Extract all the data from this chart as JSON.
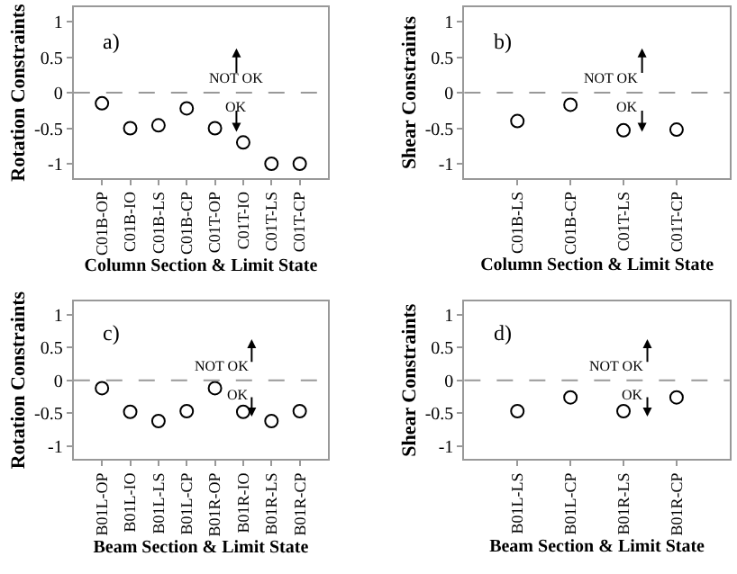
{
  "chart_data": [
    {
      "type": "scatter",
      "xlabel": "Column Section & Limit State",
      "ylabel": "Rotation Constraints",
      "categories": [
        "C01B-OP",
        "C01B-IO",
        "C01B-LS",
        "C01B-CP",
        "C01T-OP",
        "C01T-IO",
        "C01T-LS",
        "C01T-CP"
      ],
      "series": [
        {
          "color": "#000000",
          "values": [
            -0.15,
            -0.5,
            -0.46,
            -0.22,
            -0.5,
            -0.7,
            -1,
            -1
          ]
        }
      ],
      "ylim": [
        -1.2,
        1.2
      ],
      "yticks": [
        -1,
        -0.5,
        0,
        0.5,
        1
      ],
      "marker": "circle",
      "ref_lines": [
        {
          "axis": "y",
          "value": 0,
          "color": "#999999",
          "line_style": "dashed"
        }
      ],
      "annotations": [
        "a)",
        "NOT OK",
        "OK"
      ]
    },
    {
      "type": "scatter",
      "xlabel": "Column Section & Limit State",
      "ylabel": "Shear Constraints",
      "categories": [
        "C01B-LS",
        "C01B-CP",
        "C01T-LS",
        "C01T-CP"
      ],
      "series": [
        {
          "color": "#000000",
          "values": [
            -0.4,
            -0.17,
            -0.53,
            -0.52
          ]
        }
      ],
      "ylim": [
        -1.2,
        1.2
      ],
      "yticks": [
        -1,
        -0.5,
        0,
        0.5,
        1
      ],
      "marker": "circle",
      "ref_lines": [
        {
          "axis": "y",
          "value": 0,
          "color": "#999999",
          "line_style": "dashed"
        }
      ],
      "annotations": [
        "b)",
        "NOT OK",
        "OK"
      ]
    },
    {
      "type": "scatter",
      "xlabel": "Beam Section & Limit State",
      "ylabel": "Rotation Constraints",
      "categories": [
        "B01L-OP",
        "B01L-IO",
        "B01L-LS",
        "B01L-CP",
        "B01R-OP",
        "B01R-IO",
        "B01R-LS",
        "B01R-CP"
      ],
      "series": [
        {
          "color": "#000000",
          "values": [
            -0.12,
            -0.48,
            -0.62,
            -0.47,
            -0.12,
            -0.48,
            -0.62,
            -0.47
          ]
        }
      ],
      "ylim": [
        -1.2,
        1.2
      ],
      "yticks": [
        -1,
        -0.5,
        0,
        0.5,
        1
      ],
      "marker": "circle",
      "ref_lines": [
        {
          "axis": "y",
          "value": 0,
          "color": "#999999",
          "line_style": "dashed"
        }
      ],
      "annotations": [
        "c)",
        "NOT OK",
        "OK"
      ]
    },
    {
      "type": "scatter",
      "xlabel": "Beam Section & Limit State",
      "ylabel": "Shear Constraints",
      "categories": [
        "B01L-LS",
        "B01L-CP",
        "B01R-LS",
        "B01R-CP"
      ],
      "series": [
        {
          "color": "#000000",
          "values": [
            -0.47,
            -0.26,
            -0.47,
            -0.26
          ]
        }
      ],
      "ylim": [
        -1.2,
        1.2
      ],
      "yticks": [
        -1,
        -0.5,
        0,
        0.5,
        1
      ],
      "marker": "circle",
      "ref_lines": [
        {
          "axis": "y",
          "value": 0,
          "color": "#999999",
          "line_style": "dashed"
        }
      ],
      "annotations": [
        "d)",
        "NOT OK",
        "OK"
      ]
    }
  ]
}
